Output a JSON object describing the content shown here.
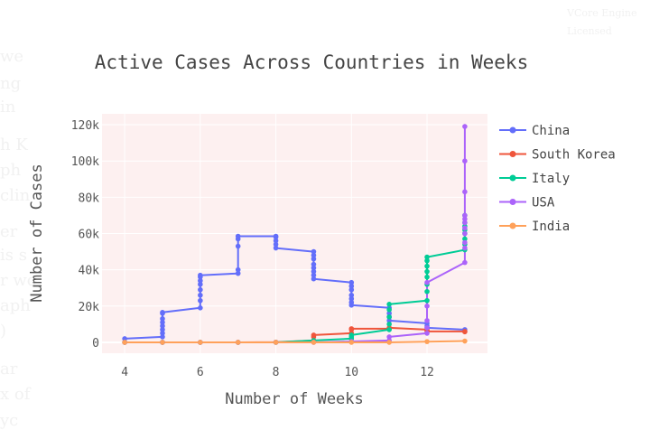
{
  "background_fragments": [
    {
      "text": "we"
    },
    {
      "text": "ng"
    },
    {
      "text": "in"
    },
    {
      "text": "h K"
    },
    {
      "text": "ph"
    },
    {
      "text": "clin"
    },
    {
      "text": "er"
    },
    {
      "text": "is s"
    },
    {
      "text": "r wc"
    },
    {
      "text": "aph"
    },
    {
      "text": ")"
    },
    {
      "text": "ar"
    },
    {
      "text": "x of"
    },
    {
      "text": "yc"
    },
    {
      "text": "VCore Engine"
    },
    {
      "text": "Licensed"
    }
  ],
  "chart_data": {
    "type": "line",
    "title": "Active Cases Across Countries in Weeks",
    "xlabel": "Number of Weeks",
    "ylabel": "Number of Cases",
    "xlim": [
      3.4,
      13.6
    ],
    "ylim": [
      -6000,
      126000
    ],
    "xticks": [
      4,
      6,
      8,
      10,
      12
    ],
    "yticks": [
      0,
      20000,
      40000,
      60000,
      80000,
      100000,
      120000
    ],
    "ytick_labels": [
      "0",
      "20k",
      "40k",
      "60k",
      "80k",
      "100k",
      "120k"
    ],
    "grid": true,
    "legend_position": "right",
    "series": [
      {
        "name": "China",
        "color": "#636efa",
        "x": [
          4,
          5,
          5,
          5,
          5,
          5,
          5,
          5,
          5,
          6,
          6,
          6,
          6,
          6,
          6,
          6,
          6,
          7,
          7,
          7,
          7,
          7,
          8,
          8,
          8,
          8,
          8,
          9,
          9,
          9,
          9,
          9,
          9,
          9,
          9,
          10,
          10,
          10,
          10,
          10,
          10,
          10,
          11,
          11,
          11,
          11,
          12,
          12,
          12,
          13,
          13
        ],
        "y": [
          2000,
          3000,
          5000,
          7000,
          9000,
          11000,
          13000,
          16000,
          16500,
          19000,
          23000,
          26000,
          29000,
          32000,
          34000,
          36000,
          37000,
          38000,
          40000,
          53000,
          57000,
          58500,
          58500,
          58000,
          56000,
          54000,
          52000,
          50000,
          48000,
          46000,
          43000,
          41000,
          39000,
          37000,
          35000,
          33000,
          31000,
          29000,
          26000,
          24000,
          22000,
          20500,
          19000,
          16000,
          14000,
          12000,
          10500,
          9000,
          8000,
          7000,
          6000
        ]
      },
      {
        "name": "South Korea",
        "color": "#ef553b",
        "x": [
          4,
          5,
          6,
          7,
          8,
          9,
          9,
          9,
          10,
          10,
          10,
          11,
          11,
          11,
          12,
          12,
          12,
          13,
          13
        ],
        "y": [
          0,
          0,
          0,
          0,
          100,
          1000,
          3000,
          4000,
          5000,
          7000,
          7500,
          7500,
          7800,
          8000,
          7000,
          6500,
          6000,
          6000,
          5800
        ]
      },
      {
        "name": "Italy",
        "color": "#00cc96",
        "x": [
          4,
          5,
          6,
          7,
          8,
          9,
          10,
          10,
          10,
          11,
          11,
          11,
          11,
          11,
          12,
          12,
          12,
          12,
          12,
          12,
          12,
          12,
          13,
          13,
          13,
          13,
          13,
          13,
          13,
          13
        ],
        "y": [
          0,
          0,
          0,
          0,
          0,
          1000,
          2000,
          3000,
          4000,
          7000,
          10000,
          14000,
          18000,
          21000,
          23000,
          28000,
          32000,
          36000,
          39000,
          42000,
          45000,
          47000,
          51000,
          54000,
          57000,
          60000,
          62000,
          64000,
          66000,
          70000
        ]
      },
      {
        "name": "USA",
        "color": "#ab63fa",
        "x": [
          4,
          5,
          6,
          7,
          8,
          9,
          10,
          11,
          11,
          12,
          12,
          12,
          12,
          12,
          13,
          13,
          13,
          13,
          13,
          13,
          13,
          13,
          13,
          13,
          13
        ],
        "y": [
          0,
          0,
          0,
          0,
          0,
          0,
          500,
          1000,
          3000,
          5000,
          8000,
          12000,
          20000,
          33000,
          44000,
          52000,
          55000,
          60000,
          63000,
          66000,
          68000,
          70000,
          83000,
          100000,
          119000
        ]
      },
      {
        "name": "India",
        "color": "#ffa15a",
        "x": [
          4,
          5,
          6,
          7,
          8,
          9,
          10,
          11,
          12,
          13
        ],
        "y": [
          0,
          0,
          0,
          0,
          0,
          0,
          0,
          0,
          400,
          700
        ]
      }
    ]
  }
}
